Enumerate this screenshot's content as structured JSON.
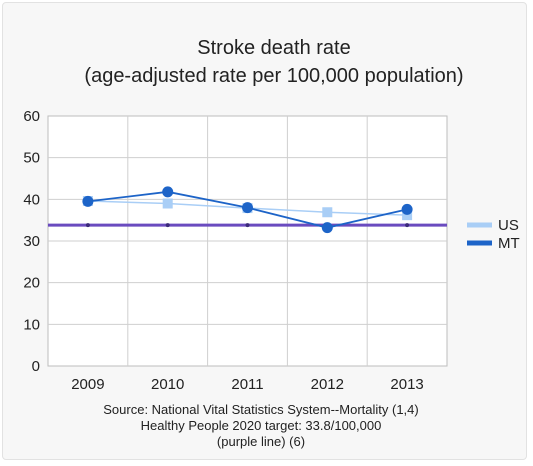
{
  "chart_data": {
    "type": "line",
    "title": "Stroke death rate",
    "subtitle": "(age-adjusted rate per 100,000 population)",
    "xlabel": "",
    "ylabel": "",
    "categories": [
      "2009",
      "2010",
      "2011",
      "2012",
      "2013"
    ],
    "ylim": [
      0,
      60
    ],
    "yticks": [
      0,
      10,
      20,
      30,
      40,
      50,
      60
    ],
    "grid": true,
    "legend_position": "right",
    "series": [
      {
        "name": "US",
        "values": [
          39.6,
          39.0,
          37.9,
          36.9,
          36.2
        ],
        "color": "#a9cef6",
        "marker": "square"
      },
      {
        "name": "MT",
        "values": [
          39.5,
          41.8,
          38.0,
          33.2,
          37.6
        ],
        "color": "#1d64c8",
        "marker": "circle"
      }
    ],
    "target_line": {
      "value": 33.8,
      "color": "#6a4bbf"
    },
    "source_lines": [
      "Source: National Vital Statistics System--Mortality (1,4)",
      "Healthy People 2020 target: 33.8/100,000",
      "(purple line) (6)"
    ]
  }
}
